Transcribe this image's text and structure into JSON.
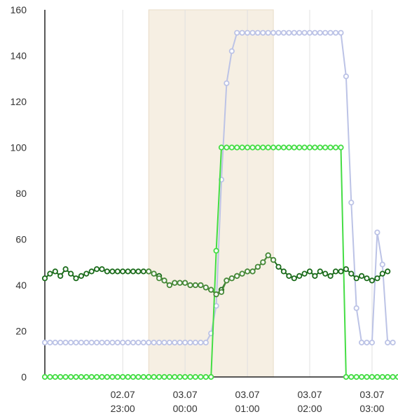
{
  "chart_data": {
    "type": "line",
    "ylim": [
      0,
      160
    ],
    "y_ticks": [
      0,
      20,
      40,
      60,
      80,
      100,
      120,
      140,
      160
    ],
    "x_range": [
      "02.07 21:45",
      "03.07 03:25"
    ],
    "x_ticks": [
      {
        "value": "02.07 23:00",
        "date": "02.07",
        "time": "23:00"
      },
      {
        "value": "03.07 00:00",
        "date": "03.07",
        "time": "00:00"
      },
      {
        "value": "03.07 01:00",
        "date": "03.07",
        "time": "01:00"
      },
      {
        "value": "03.07 02:00",
        "date": "03.07",
        "time": "02:00"
      },
      {
        "value": "03.07 03:00",
        "date": "03.07",
        "time": "03:00"
      }
    ],
    "grid": "vertical",
    "highlight_band": {
      "start": "02.07 23:25",
      "end": "03.07 01:25",
      "color": "#f6efe3"
    },
    "series": [
      {
        "color": "#bcc3e6",
        "marker_fill": "#ffffff",
        "points": [
          [
            "02.07 21:45",
            15
          ],
          [
            "02.07 21:50",
            15
          ],
          [
            "02.07 21:55",
            15
          ],
          [
            "02.07 22:00",
            15
          ],
          [
            "02.07 22:05",
            15
          ],
          [
            "02.07 22:10",
            15
          ],
          [
            "02.07 22:15",
            15
          ],
          [
            "02.07 22:20",
            15
          ],
          [
            "02.07 22:25",
            15
          ],
          [
            "02.07 22:30",
            15
          ],
          [
            "02.07 22:35",
            15
          ],
          [
            "02.07 22:40",
            15
          ],
          [
            "02.07 22:45",
            15
          ],
          [
            "02.07 22:50",
            15
          ],
          [
            "02.07 22:55",
            15
          ],
          [
            "02.07 23:00",
            15
          ],
          [
            "02.07 23:05",
            15
          ],
          [
            "02.07 23:10",
            15
          ],
          [
            "02.07 23:15",
            15
          ],
          [
            "02.07 23:20",
            15
          ],
          [
            "02.07 23:25",
            15
          ],
          [
            "02.07 23:30",
            15
          ],
          [
            "02.07 23:35",
            15
          ],
          [
            "02.07 23:40",
            15
          ],
          [
            "02.07 23:45",
            15
          ],
          [
            "02.07 23:50",
            15
          ],
          [
            "02.07 23:55",
            15
          ],
          [
            "03.07 00:00",
            15
          ],
          [
            "03.07 00:05",
            15
          ],
          [
            "03.07 00:10",
            15
          ],
          [
            "03.07 00:15",
            15
          ],
          [
            "03.07 00:20",
            15
          ],
          [
            "03.07 00:25",
            19
          ],
          [
            "03.07 00:30",
            31
          ],
          [
            "03.07 00:35",
            86
          ],
          [
            "03.07 00:40",
            128
          ],
          [
            "03.07 00:45",
            142
          ],
          [
            "03.07 00:50",
            150
          ],
          [
            "03.07 00:55",
            150
          ],
          [
            "03.07 01:00",
            150
          ],
          [
            "03.07 01:05",
            150
          ],
          [
            "03.07 01:10",
            150
          ],
          [
            "03.07 01:15",
            150
          ],
          [
            "03.07 01:20",
            150
          ],
          [
            "03.07 01:25",
            150
          ],
          [
            "03.07 01:30",
            150
          ],
          [
            "03.07 01:35",
            150
          ],
          [
            "03.07 01:40",
            150
          ],
          [
            "03.07 01:45",
            150
          ],
          [
            "03.07 01:50",
            150
          ],
          [
            "03.07 01:55",
            150
          ],
          [
            "03.07 02:00",
            150
          ],
          [
            "03.07 02:05",
            150
          ],
          [
            "03.07 02:10",
            150
          ],
          [
            "03.07 02:15",
            150
          ],
          [
            "03.07 02:20",
            150
          ],
          [
            "03.07 02:25",
            150
          ],
          [
            "03.07 02:30",
            150
          ],
          [
            "03.07 02:35",
            131
          ],
          [
            "03.07 02:40",
            76
          ],
          [
            "03.07 02:45",
            30
          ],
          [
            "03.07 02:50",
            15
          ],
          [
            "03.07 02:55",
            15
          ],
          [
            "03.07 03:00",
            15
          ],
          [
            "03.07 03:05",
            63
          ],
          [
            "03.07 03:10",
            49
          ],
          [
            "03.07 03:15",
            15
          ],
          [
            "03.07 03:20",
            15
          ]
        ]
      },
      {
        "color": "#44dd44",
        "marker_fill": "#ffffff",
        "points": [
          [
            "02.07 21:45",
            0
          ],
          [
            "02.07 21:50",
            0
          ],
          [
            "02.07 21:55",
            0
          ],
          [
            "02.07 22:00",
            0
          ],
          [
            "02.07 22:05",
            0
          ],
          [
            "02.07 22:10",
            0
          ],
          [
            "02.07 22:15",
            0
          ],
          [
            "02.07 22:20",
            0
          ],
          [
            "02.07 22:25",
            0
          ],
          [
            "02.07 22:30",
            0
          ],
          [
            "02.07 22:35",
            0
          ],
          [
            "02.07 22:40",
            0
          ],
          [
            "02.07 22:45",
            0
          ],
          [
            "02.07 22:50",
            0
          ],
          [
            "02.07 22:55",
            0
          ],
          [
            "02.07 23:00",
            0
          ],
          [
            "02.07 23:05",
            0
          ],
          [
            "02.07 23:10",
            0
          ],
          [
            "02.07 23:15",
            0
          ],
          [
            "02.07 23:20",
            0
          ],
          [
            "02.07 23:25",
            0
          ],
          [
            "02.07 23:30",
            0
          ],
          [
            "02.07 23:35",
            0
          ],
          [
            "02.07 23:40",
            0
          ],
          [
            "02.07 23:45",
            0
          ],
          [
            "02.07 23:50",
            0
          ],
          [
            "02.07 23:55",
            0
          ],
          [
            "03.07 00:00",
            0
          ],
          [
            "03.07 00:05",
            0
          ],
          [
            "03.07 00:10",
            0
          ],
          [
            "03.07 00:15",
            0
          ],
          [
            "03.07 00:20",
            0
          ],
          [
            "03.07 00:25",
            0
          ],
          [
            "03.07 00:30",
            55
          ],
          [
            "03.07 00:35",
            100
          ],
          [
            "03.07 00:40",
            100
          ],
          [
            "03.07 00:45",
            100
          ],
          [
            "03.07 00:50",
            100
          ],
          [
            "03.07 00:55",
            100
          ],
          [
            "03.07 01:00",
            100
          ],
          [
            "03.07 01:05",
            100
          ],
          [
            "03.07 01:10",
            100
          ],
          [
            "03.07 01:15",
            100
          ],
          [
            "03.07 01:20",
            100
          ],
          [
            "03.07 01:25",
            100
          ],
          [
            "03.07 01:30",
            100
          ],
          [
            "03.07 01:35",
            100
          ],
          [
            "03.07 01:40",
            100
          ],
          [
            "03.07 01:45",
            100
          ],
          [
            "03.07 01:50",
            100
          ],
          [
            "03.07 01:55",
            100
          ],
          [
            "03.07 02:00",
            100
          ],
          [
            "03.07 02:05",
            100
          ],
          [
            "03.07 02:10",
            100
          ],
          [
            "03.07 02:15",
            100
          ],
          [
            "03.07 02:20",
            100
          ],
          [
            "03.07 02:25",
            100
          ],
          [
            "03.07 02:30",
            100
          ],
          [
            "03.07 02:35",
            0
          ],
          [
            "03.07 02:40",
            0
          ],
          [
            "03.07 02:45",
            0
          ],
          [
            "03.07 02:50",
            0
          ],
          [
            "03.07 02:55",
            0
          ],
          [
            "03.07 03:00",
            0
          ],
          [
            "03.07 03:05",
            0
          ],
          [
            "03.07 03:10",
            0
          ],
          [
            "03.07 03:15",
            0
          ],
          [
            "03.07 03:20",
            0
          ],
          [
            "03.07 03:25",
            0
          ]
        ]
      },
      {
        "color": "#1a6b1a",
        "marker_fill": "#ffffff",
        "points": [
          [
            "02.07 21:45",
            43
          ],
          [
            "02.07 21:50",
            45
          ],
          [
            "02.07 21:55",
            46
          ],
          [
            "02.07 22:00",
            44
          ],
          [
            "02.07 22:05",
            47
          ],
          [
            "02.07 22:10",
            45
          ],
          [
            "02.07 22:15",
            43
          ],
          [
            "02.07 22:20",
            44
          ],
          [
            "02.07 22:25",
            45
          ],
          [
            "02.07 22:30",
            46
          ],
          [
            "02.07 22:35",
            47
          ],
          [
            "02.07 22:40",
            47
          ],
          [
            "02.07 22:45",
            46
          ],
          [
            "02.07 22:50",
            46
          ],
          [
            "02.07 22:55",
            46
          ],
          [
            "02.07 23:00",
            46
          ],
          [
            "02.07 23:05",
            46
          ],
          [
            "02.07 23:10",
            46
          ],
          [
            "02.07 23:15",
            46
          ],
          [
            "02.07 23:20",
            46
          ],
          [
            "02.07 23:25",
            46
          ],
          [
            "02.07 23:30",
            45
          ],
          [
            "02.07 23:35",
            44
          ],
          [
            "02.07 23:40",
            42
          ],
          [
            "02.07 23:45",
            40
          ],
          [
            "02.07 23:50",
            41
          ],
          [
            "02.07 23:55",
            41
          ],
          [
            "03.07 00:00",
            41
          ],
          [
            "03.07 00:05",
            40
          ],
          [
            "03.07 00:10",
            40
          ],
          [
            "03.07 00:15",
            40
          ],
          [
            "03.07 00:20",
            39
          ],
          [
            "03.07 00:25",
            38
          ],
          [
            "03.07 00:30",
            36
          ],
          [
            "03.07 00:35",
            38
          ],
          [
            "03.07 00:40",
            42
          ],
          [
            "03.07 00:45",
            43
          ],
          [
            "03.07 00:50",
            44
          ],
          [
            "03.07 00:55",
            45
          ],
          [
            "03.07 01:00",
            46
          ],
          [
            "03.07 01:05",
            46
          ],
          [
            "03.07 01:10",
            48
          ],
          [
            "03.07 01:15",
            50
          ],
          [
            "03.07 01:20",
            53
          ],
          [
            "03.07 01:25",
            51
          ],
          [
            "03.07 01:30",
            48
          ],
          [
            "03.07 01:35",
            46
          ],
          [
            "03.07 01:40",
            44
          ],
          [
            "03.07 01:45",
            43
          ],
          [
            "03.07 01:50",
            44
          ],
          [
            "03.07 01:55",
            45
          ],
          [
            "03.07 02:00",
            46
          ],
          [
            "03.07 02:05",
            44
          ],
          [
            "03.07 02:10",
            46
          ],
          [
            "03.07 02:15",
            45
          ],
          [
            "03.07 02:20",
            44
          ],
          [
            "03.07 02:25",
            46
          ],
          [
            "03.07 02:30",
            46
          ],
          [
            "03.07 02:35",
            47
          ],
          [
            "03.07 02:40",
            45
          ],
          [
            "03.07 02:45",
            43
          ],
          [
            "03.07 02:50",
            44
          ],
          [
            "03.07 02:55",
            43
          ],
          [
            "03.07 03:00",
            42
          ],
          [
            "03.07 03:05",
            43
          ],
          [
            "03.07 03:10",
            45
          ],
          [
            "03.07 03:15",
            46
          ]
        ]
      },
      {
        "color": "#4a8a3a",
        "marker_fill": "#ffffff",
        "points": [
          [
            "02.07 23:25",
            46
          ],
          [
            "02.07 23:30",
            45
          ],
          [
            "02.07 23:35",
            43
          ],
          [
            "02.07 23:40",
            42
          ],
          [
            "02.07 23:45",
            40
          ],
          [
            "02.07 23:50",
            41
          ],
          [
            "02.07 23:55",
            41
          ],
          [
            "03.07 00:00",
            41
          ],
          [
            "03.07 00:05",
            40
          ],
          [
            "03.07 00:10",
            40
          ],
          [
            "03.07 00:15",
            40
          ],
          [
            "03.07 00:20",
            39
          ],
          [
            "03.07 00:25",
            38
          ],
          [
            "03.07 00:30",
            36
          ],
          [
            "03.07 00:35",
            37
          ],
          [
            "03.07 00:40",
            42
          ],
          [
            "03.07 00:45",
            43
          ],
          [
            "03.07 00:50",
            44
          ],
          [
            "03.07 00:55",
            45
          ],
          [
            "03.07 01:00",
            46
          ],
          [
            "03.07 01:05",
            46
          ],
          [
            "03.07 01:10",
            48
          ],
          [
            "03.07 01:15",
            50
          ],
          [
            "03.07 01:20",
            53
          ],
          [
            "03.07 01:25",
            51
          ]
        ]
      }
    ]
  }
}
